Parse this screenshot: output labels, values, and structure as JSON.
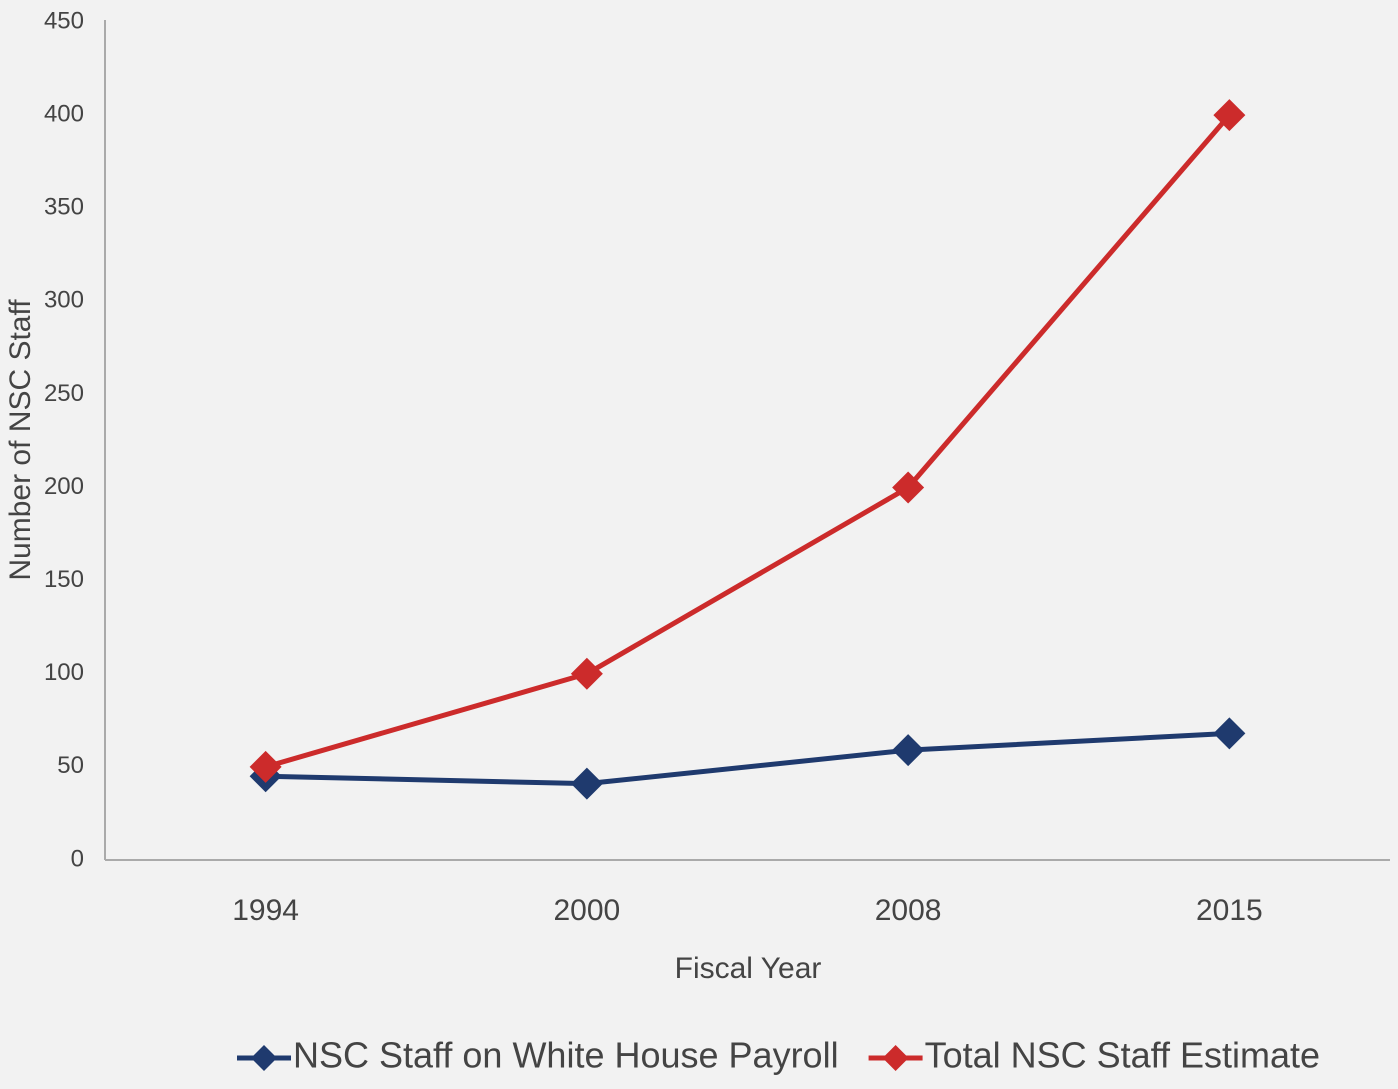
{
  "chart_data": {
    "type": "line",
    "x_label": "Fiscal Year",
    "y_label": "Number of NSC Staff",
    "categories": [
      "1994",
      "2000",
      "2008",
      "2015"
    ],
    "series": [
      {
        "name": "NSC Staff on White House Payroll",
        "color": "#1f3a6e",
        "values": [
          45,
          41,
          59,
          68
        ]
      },
      {
        "name": "Total NSC Staff Estimate",
        "color": "#cc2b2b",
        "values": [
          50,
          100,
          200,
          400
        ]
      }
    ],
    "ylim": [
      0,
      450
    ],
    "yticks": [
      0,
      50,
      100,
      150,
      200,
      250,
      300,
      350,
      400,
      450
    ],
    "grid": false,
    "legend": "bottom"
  }
}
